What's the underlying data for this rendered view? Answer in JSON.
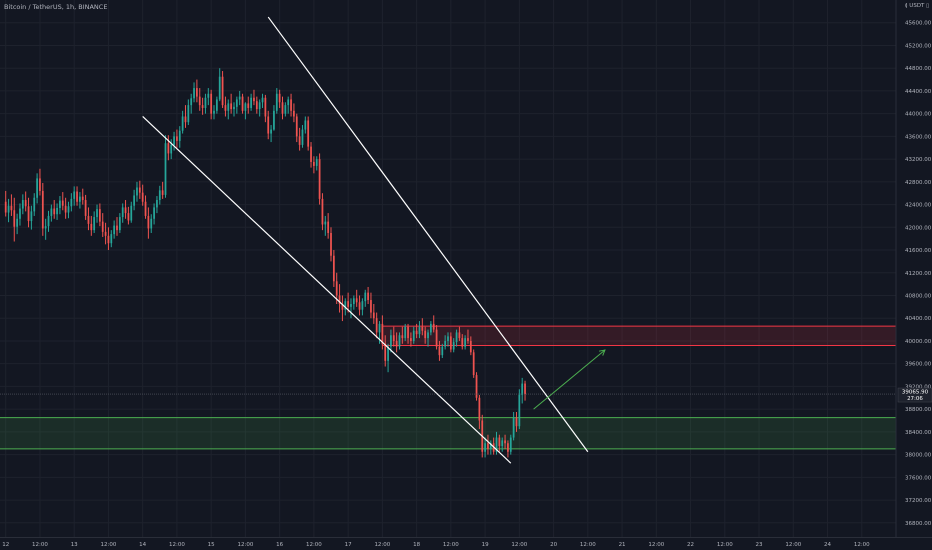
{
  "header": {
    "symbol": "Bitcoin / TetherUS",
    "interval": "1h",
    "exchange": "BINANCE",
    "sep1": ", ",
    "sep2": ", "
  },
  "axis": {
    "unit_label": "≬ USDT ▯"
  },
  "price_box": {
    "price": "39065.90",
    "countdown": "27:06"
  },
  "colors": {
    "background": "#131722",
    "up": "#26a69a",
    "down": "#ef5350",
    "grid": "#1e222d",
    "trendline": "#ffffff",
    "resistance_zone": "#f23645",
    "support_zone": "#4caf50",
    "arrow": "#4caf50"
  },
  "chart_data": {
    "type": "candlestick",
    "symbol": "Bitcoin / TetherUS",
    "interval": "1h",
    "exchange": "BINANCE",
    "y_ticks": [
      "45600.00",
      "45200.00",
      "44800.00",
      "44400.00",
      "44000.00",
      "43600.00",
      "43200.00",
      "42800.00",
      "42400.00",
      "42000.00",
      "41600.00",
      "41200.00",
      "40800.00",
      "40400.00",
      "40000.00",
      "39600.00",
      "39200.00",
      "38800.00",
      "38400.00",
      "38000.00",
      "37600.00",
      "37200.00",
      "36800.00"
    ],
    "x_ticks": [
      "12",
      "12:00",
      "13",
      "12:00",
      "14",
      "12:00",
      "15",
      "12:00",
      "16",
      "12:00",
      "17",
      "12:00",
      "18",
      "12:00",
      "19",
      "12:00",
      "20",
      "12:00",
      "21",
      "12:00",
      "22",
      "12:00",
      "23",
      "12:00",
      "24",
      "12:00"
    ],
    "x_tick_hours": [
      0,
      12,
      24,
      36,
      48,
      60,
      72,
      84,
      96,
      108,
      120,
      132,
      144,
      156,
      168,
      180,
      192,
      204,
      216,
      228,
      240,
      252,
      264,
      276,
      288,
      300
    ],
    "x_origin": "12 00:00",
    "x_unit": "hours",
    "ylim": [
      36550,
      46000
    ],
    "xlim": [
      -2,
      312
    ],
    "last_price": 39065.9,
    "candles": [
      [
        0,
        42450,
        42640,
        42190,
        42260
      ],
      [
        1,
        42260,
        42500,
        42090,
        42380
      ],
      [
        2,
        42380,
        42580,
        42200,
        42300
      ],
      [
        3,
        42300,
        42520,
        41750,
        42010
      ],
      [
        4,
        42010,
        42240,
        41880,
        42150
      ],
      [
        5,
        42150,
        42420,
        42030,
        42330
      ],
      [
        6,
        42330,
        42580,
        42230,
        42480
      ],
      [
        7,
        42480,
        42630,
        42280,
        42370
      ],
      [
        8,
        42370,
        42520,
        42000,
        42110
      ],
      [
        9,
        42110,
        42380,
        41960,
        42280
      ],
      [
        10,
        42280,
        42600,
        42200,
        42520
      ],
      [
        11,
        42520,
        42950,
        42420,
        42860
      ],
      [
        12,
        42860,
        43030,
        42560,
        42640
      ],
      [
        13,
        42640,
        42780,
        41850,
        41980
      ],
      [
        14,
        41980,
        42150,
        41780,
        42020
      ],
      [
        15,
        42020,
        42290,
        41920,
        42200
      ],
      [
        16,
        42200,
        42400,
        42100,
        42330
      ],
      [
        17,
        42330,
        42480,
        42150,
        42230
      ],
      [
        18,
        42230,
        42420,
        42130,
        42340
      ],
      [
        19,
        42340,
        42550,
        42230,
        42470
      ],
      [
        20,
        42470,
        42620,
        42300,
        42380
      ],
      [
        21,
        42380,
        42520,
        42150,
        42260
      ],
      [
        22,
        42260,
        42450,
        42160,
        42370
      ],
      [
        23,
        42370,
        42600,
        42280,
        42500
      ],
      [
        24,
        42500,
        42720,
        42380,
        42630
      ],
      [
        25,
        42630,
        42720,
        42380,
        42450
      ],
      [
        26,
        42450,
        42620,
        42330,
        42540
      ],
      [
        27,
        42540,
        42680,
        42400,
        42480
      ],
      [
        28,
        42480,
        42570,
        42130,
        42200
      ],
      [
        29,
        42200,
        42350,
        41950,
        42060
      ],
      [
        30,
        42060,
        42200,
        41850,
        41950
      ],
      [
        31,
        41950,
        42280,
        41900,
        42180
      ],
      [
        32,
        42180,
        42400,
        42080,
        42320
      ],
      [
        33,
        42320,
        42420,
        42020,
        42100
      ],
      [
        34,
        42100,
        42250,
        41830,
        41920
      ],
      [
        35,
        41920,
        42080,
        41700,
        41850
      ],
      [
        36,
        41850,
        42000,
        41600,
        41720
      ],
      [
        37,
        41720,
        41950,
        41650,
        41880
      ],
      [
        38,
        41880,
        42120,
        41800,
        42030
      ],
      [
        39,
        42030,
        42180,
        41850,
        41950
      ],
      [
        40,
        41950,
        42250,
        41900,
        42180
      ],
      [
        41,
        42180,
        42420,
        42080,
        42350
      ],
      [
        42,
        42350,
        42480,
        42150,
        42250
      ],
      [
        43,
        42250,
        42360,
        42050,
        42120
      ],
      [
        44,
        42120,
        42450,
        42080,
        42380
      ],
      [
        45,
        42380,
        42660,
        42300,
        42560
      ],
      [
        46,
        42560,
        42800,
        42450,
        42700
      ],
      [
        47,
        42700,
        42820,
        42500,
        42610
      ],
      [
        48,
        42610,
        42750,
        42380,
        42450
      ],
      [
        49,
        42450,
        42560,
        42150,
        42200
      ],
      [
        50,
        42200,
        42350,
        41800,
        41980
      ],
      [
        51,
        41980,
        42230,
        41900,
        42150
      ],
      [
        52,
        42150,
        42420,
        42050,
        42350
      ],
      [
        53,
        42350,
        42550,
        42250,
        42480
      ],
      [
        54,
        42480,
        42730,
        42400,
        42650
      ],
      [
        55,
        42650,
        42800,
        42500,
        42570
      ],
      [
        56,
        42570,
        43620,
        42520,
        43480
      ],
      [
        57,
        43480,
        43620,
        43180,
        43300
      ],
      [
        58,
        43300,
        43550,
        43200,
        43450
      ],
      [
        59,
        43450,
        43680,
        43350,
        43600
      ],
      [
        60,
        43600,
        43720,
        43400,
        43520
      ],
      [
        61,
        43520,
        43780,
        43400,
        43700
      ],
      [
        62,
        43700,
        44050,
        43650,
        43950
      ],
      [
        63,
        43950,
        44150,
        43750,
        43850
      ],
      [
        64,
        43850,
        44250,
        43800,
        44150
      ],
      [
        65,
        44150,
        44350,
        44000,
        44270
      ],
      [
        66,
        44270,
        44550,
        44200,
        44450
      ],
      [
        67,
        44450,
        44600,
        44200,
        44300
      ],
      [
        68,
        44300,
        44450,
        44050,
        44150
      ],
      [
        69,
        44150,
        44280,
        43980,
        44100
      ],
      [
        70,
        44100,
        44350,
        44000,
        44280
      ],
      [
        71,
        44280,
        44450,
        44150,
        44350
      ],
      [
        72,
        44350,
        44420,
        43900,
        44000
      ],
      [
        73,
        44000,
        44150,
        43900,
        44050
      ],
      [
        74,
        44050,
        44300,
        44000,
        44250
      ],
      [
        75,
        44250,
        44800,
        44220,
        44650
      ],
      [
        76,
        44650,
        44750,
        44100,
        44150
      ],
      [
        77,
        44150,
        44300,
        43950,
        44050
      ],
      [
        78,
        44050,
        44250,
        43900,
        44180
      ],
      [
        79,
        44180,
        44350,
        44000,
        44080
      ],
      [
        80,
        44080,
        44200,
        43950,
        44120
      ],
      [
        81,
        44120,
        44300,
        44000,
        44250
      ],
      [
        82,
        44250,
        44400,
        44150,
        44300
      ],
      [
        83,
        44300,
        44350,
        44000,
        44050
      ],
      [
        84,
        44050,
        44200,
        43900,
        44180
      ],
      [
        85,
        44180,
        44300,
        44000,
        44100
      ],
      [
        86,
        44100,
        44350,
        44050,
        44280
      ],
      [
        87,
        44280,
        44420,
        44150,
        44220
      ],
      [
        88,
        44220,
        44300,
        44000,
        44080
      ],
      [
        89,
        44080,
        44250,
        43950,
        44200
      ],
      [
        90,
        44200,
        44350,
        44100,
        44280
      ],
      [
        91,
        44280,
        44330,
        43850,
        43950
      ],
      [
        92,
        43950,
        44050,
        43550,
        43650
      ],
      [
        93,
        43650,
        43800,
        43500,
        43720
      ],
      [
        94,
        43720,
        44150,
        43700,
        44050
      ],
      [
        95,
        44050,
        44450,
        44000,
        44350
      ],
      [
        96,
        44350,
        44420,
        44100,
        44200
      ],
      [
        97,
        44200,
        44300,
        43900,
        44000
      ],
      [
        98,
        44000,
        44200,
        43950,
        44150
      ],
      [
        99,
        44150,
        44300,
        44000,
        44250
      ],
      [
        100,
        44250,
        44350,
        43950,
        44050
      ],
      [
        101,
        44050,
        44180,
        43850,
        43950
      ],
      [
        102,
        43950,
        44000,
        43500,
        43600
      ],
      [
        103,
        43600,
        43750,
        43350,
        43450
      ],
      [
        104,
        43450,
        43800,
        43400,
        43720
      ],
      [
        105,
        43720,
        43950,
        43650,
        43880
      ],
      [
        106,
        43880,
        43950,
        43350,
        43420
      ],
      [
        107,
        43420,
        43500,
        43050,
        43150
      ],
      [
        108,
        43150,
        43250,
        42950,
        43080
      ],
      [
        109,
        43080,
        43250,
        43000,
        43200
      ],
      [
        110,
        43200,
        43300,
        42400,
        42500
      ],
      [
        111,
        42500,
        42600,
        41950,
        42050
      ],
      [
        112,
        42050,
        42200,
        41850,
        42100
      ],
      [
        113,
        42100,
        42250,
        41800,
        41900
      ],
      [
        114,
        41900,
        42000,
        41400,
        41500
      ],
      [
        115,
        41500,
        41600,
        40950,
        41050
      ],
      [
        116,
        41050,
        41200,
        40650,
        40800
      ],
      [
        117,
        40800,
        41000,
        40500,
        40650
      ],
      [
        118,
        40650,
        40800,
        40350,
        40550
      ],
      [
        119,
        40550,
        40750,
        40450,
        40700
      ],
      [
        120,
        40700,
        40850,
        40500,
        40600
      ],
      [
        121,
        40600,
        40750,
        40400,
        40650
      ],
      [
        122,
        40650,
        40800,
        40550,
        40750
      ],
      [
        123,
        40750,
        40900,
        40600,
        40680
      ],
      [
        124,
        40680,
        40800,
        40450,
        40550
      ],
      [
        125,
        40550,
        40750,
        40450,
        40700
      ],
      [
        126,
        40700,
        40900,
        40600,
        40850
      ],
      [
        127,
        40850,
        40950,
        40650,
        40720
      ],
      [
        128,
        40720,
        40850,
        40400,
        40500
      ],
      [
        129,
        40500,
        40650,
        40300,
        40400
      ],
      [
        130,
        40400,
        40500,
        40050,
        40150
      ],
      [
        131,
        40150,
        40350,
        39950,
        40300
      ],
      [
        132,
        40300,
        40450,
        39850,
        39950
      ],
      [
        133,
        39950,
        40100,
        39550,
        39650
      ],
      [
        134,
        39650,
        39950,
        39450,
        39900
      ],
      [
        135,
        39900,
        40200,
        39800,
        40100
      ],
      [
        136,
        40100,
        40250,
        39900,
        40000
      ],
      [
        137,
        40000,
        40150,
        39800,
        39900
      ],
      [
        138,
        39900,
        40150,
        39850,
        40100
      ],
      [
        139,
        40100,
        40250,
        39950,
        40050
      ],
      [
        140,
        40050,
        40300,
        40000,
        40250
      ],
      [
        141,
        40250,
        40300,
        39950,
        40050
      ],
      [
        142,
        40050,
        40150,
        39900,
        40000
      ],
      [
        143,
        40000,
        40250,
        39950,
        40180
      ],
      [
        144,
        40180,
        40300,
        40050,
        40120
      ],
      [
        145,
        40120,
        40350,
        40050,
        40250
      ],
      [
        146,
        40250,
        40400,
        40100,
        40180
      ],
      [
        147,
        40180,
        40250,
        39950,
        40050
      ],
      [
        148,
        40050,
        40200,
        39900,
        40150
      ],
      [
        149,
        40150,
        40350,
        40100,
        40300
      ],
      [
        150,
        40300,
        40450,
        40150,
        40200
      ],
      [
        151,
        40200,
        40280,
        39850,
        39900
      ],
      [
        152,
        39900,
        40000,
        39650,
        39750
      ],
      [
        153,
        39750,
        39950,
        39700,
        39900
      ],
      [
        154,
        39900,
        40100,
        39850,
        40000
      ],
      [
        155,
        40000,
        40150,
        39900,
        40080
      ],
      [
        156,
        40080,
        40150,
        39800,
        39850
      ],
      [
        157,
        39850,
        40050,
        39800,
        39980
      ],
      [
        158,
        39980,
        40200,
        39900,
        40150
      ],
      [
        159,
        40150,
        40250,
        40000,
        40050
      ],
      [
        160,
        40050,
        40120,
        39850,
        39900
      ],
      [
        161,
        39900,
        40100,
        39850,
        40050
      ],
      [
        162,
        40050,
        40200,
        39950,
        40000
      ],
      [
        163,
        40000,
        40080,
        39750,
        39800
      ],
      [
        164,
        39800,
        39850,
        39350,
        39400
      ],
      [
        165,
        39400,
        39450,
        38950,
        39000
      ],
      [
        166,
        39000,
        39050,
        38450,
        38600
      ],
      [
        167,
        38600,
        38700,
        37950,
        38050
      ],
      [
        168,
        38050,
        38300,
        37950,
        38200
      ],
      [
        169,
        38200,
        38350,
        38000,
        38100
      ],
      [
        170,
        38100,
        38250,
        38000,
        38200
      ],
      [
        171,
        38200,
        38300,
        38000,
        38050
      ],
      [
        172,
        38050,
        38400,
        38000,
        38300
      ],
      [
        173,
        38300,
        38350,
        38050,
        38150
      ],
      [
        174,
        38150,
        38300,
        38050,
        38250
      ],
      [
        175,
        38250,
        38350,
        38100,
        38200
      ],
      [
        176,
        38200,
        38250,
        37950,
        38050
      ],
      [
        177,
        38050,
        38350,
        38000,
        38300
      ],
      [
        178,
        38300,
        38750,
        38250,
        38650
      ],
      [
        179,
        38650,
        38750,
        38400,
        38500
      ],
      [
        180,
        38500,
        39150,
        38450,
        39050
      ],
      [
        181,
        39050,
        39350,
        38900,
        39250
      ],
      [
        182,
        39250,
        39300,
        38950,
        39066
      ]
    ],
    "trendlines": [
      {
        "from": [
          48,
          43950
        ],
        "to": [
          177,
          37850
        ]
      },
      {
        "from": [
          92,
          45700
        ],
        "to": [
          204,
          38050
        ]
      }
    ],
    "zones": [
      {
        "name": "resistance",
        "x_from": 132,
        "y_low": 39920,
        "y_high": 40260
      },
      {
        "name": "support",
        "x_from": -2,
        "y_low": 38100,
        "y_high": 38650
      }
    ],
    "arrow": {
      "from": [
        185,
        38800
      ],
      "to": [
        210,
        39840
      ]
    },
    "grid": true
  }
}
